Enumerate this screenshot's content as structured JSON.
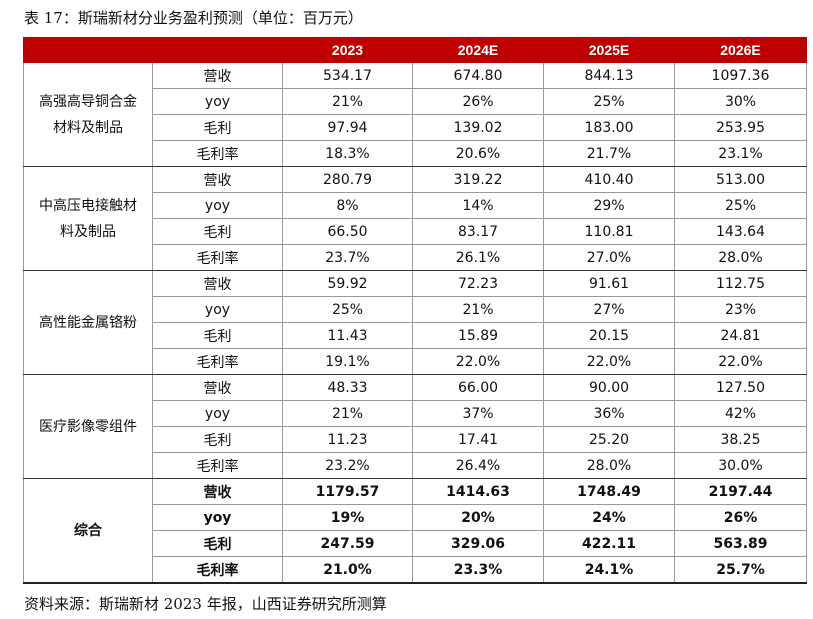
{
  "caption": "表 17：斯瑞新材分业务盈利预测（单位：百万元）",
  "source": "资料来源：斯瑞新材 2023 年报，山西证券研究所测算",
  "header": [
    "2023",
    "2024E",
    "2025E",
    "2026E"
  ],
  "segments": [
    {
      "name_line1": "高强高导铜合金",
      "name_line2": "材料及制品",
      "rows": [
        {
          "label": "营收",
          "values": [
            "534.17",
            "674.80",
            "844.13",
            "1097.36"
          ]
        },
        {
          "label": "yoy",
          "values": [
            "21%",
            "26%",
            "25%",
            "30%"
          ]
        },
        {
          "label": "毛利",
          "values": [
            "97.94",
            "139.02",
            "183.00",
            "253.95"
          ]
        },
        {
          "label": "毛利率",
          "values": [
            "18.3%",
            "20.6%",
            "21.7%",
            "23.1%"
          ]
        }
      ]
    },
    {
      "name_line1": "中高压电接触材",
      "name_line2": "料及制品",
      "rows": [
        {
          "label": "营收",
          "values": [
            "280.79",
            "319.22",
            "410.40",
            "513.00"
          ]
        },
        {
          "label": "yoy",
          "values": [
            "8%",
            "14%",
            "29%",
            "25%"
          ]
        },
        {
          "label": "毛利",
          "values": [
            "66.50",
            "83.17",
            "110.81",
            "143.64"
          ]
        },
        {
          "label": "毛利率",
          "values": [
            "23.7%",
            "26.1%",
            "27.0%",
            "28.0%"
          ]
        }
      ]
    },
    {
      "name_line1": "高性能金属铬粉",
      "name_line2": "",
      "rows": [
        {
          "label": "营收",
          "values": [
            "59.92",
            "72.23",
            "91.61",
            "112.75"
          ]
        },
        {
          "label": "yoy",
          "values": [
            "25%",
            "21%",
            "27%",
            "23%"
          ]
        },
        {
          "label": "毛利",
          "values": [
            "11.43",
            "15.89",
            "20.15",
            "24.81"
          ]
        },
        {
          "label": "毛利率",
          "values": [
            "19.1%",
            "22.0%",
            "22.0%",
            "22.0%"
          ]
        }
      ]
    },
    {
      "name_line1": "医疗影像零组件",
      "name_line2": "",
      "rows": [
        {
          "label": "营收",
          "values": [
            "48.33",
            "66.00",
            "90.00",
            "127.50"
          ]
        },
        {
          "label": "yoy",
          "values": [
            "21%",
            "37%",
            "36%",
            "42%"
          ]
        },
        {
          "label": "毛利",
          "values": [
            "11.23",
            "17.41",
            "25.20",
            "38.25"
          ]
        },
        {
          "label": "毛利率",
          "values": [
            "23.2%",
            "26.4%",
            "28.0%",
            "30.0%"
          ]
        }
      ]
    },
    {
      "name_line1": "综合",
      "name_line2": "",
      "total": true,
      "rows": [
        {
          "label": "营收",
          "values": [
            "1179.57",
            "1414.63",
            "1748.49",
            "2197.44"
          ]
        },
        {
          "label": "yoy",
          "values": [
            "19%",
            "20%",
            "24%",
            "26%"
          ]
        },
        {
          "label": "毛利",
          "values": [
            "247.59",
            "329.06",
            "422.11",
            "563.89"
          ]
        },
        {
          "label": "毛利率",
          "values": [
            "21.0%",
            "23.3%",
            "24.1%",
            "25.7%"
          ]
        }
      ]
    }
  ]
}
